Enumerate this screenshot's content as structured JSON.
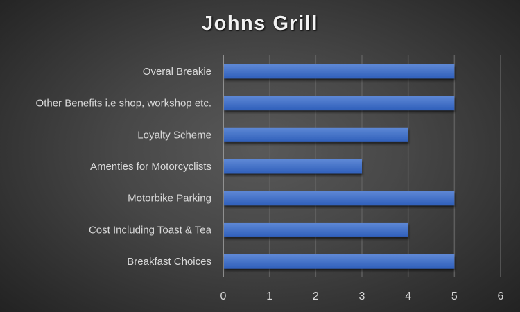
{
  "chart_data": {
    "type": "bar",
    "orientation": "horizontal",
    "title": "Johns Grill",
    "categories": [
      "Breakfast Choices",
      "Cost Including Toast  & Tea",
      "Motorbike Parking",
      "Amenties for Motorcyclists",
      "Loyalty Scheme",
      "Other Benefits i.e shop, workshop etc.",
      "Overal Breakie"
    ],
    "values": [
      5,
      4,
      5,
      3,
      4,
      5,
      5
    ],
    "xlim": [
      0,
      6
    ],
    "xticks": [
      "0",
      "1",
      "2",
      "3",
      "4",
      "5",
      "6"
    ],
    "grid": true,
    "legend": "none",
    "bar_color": "#4472c4",
    "xlabel": "",
    "ylabel": ""
  }
}
